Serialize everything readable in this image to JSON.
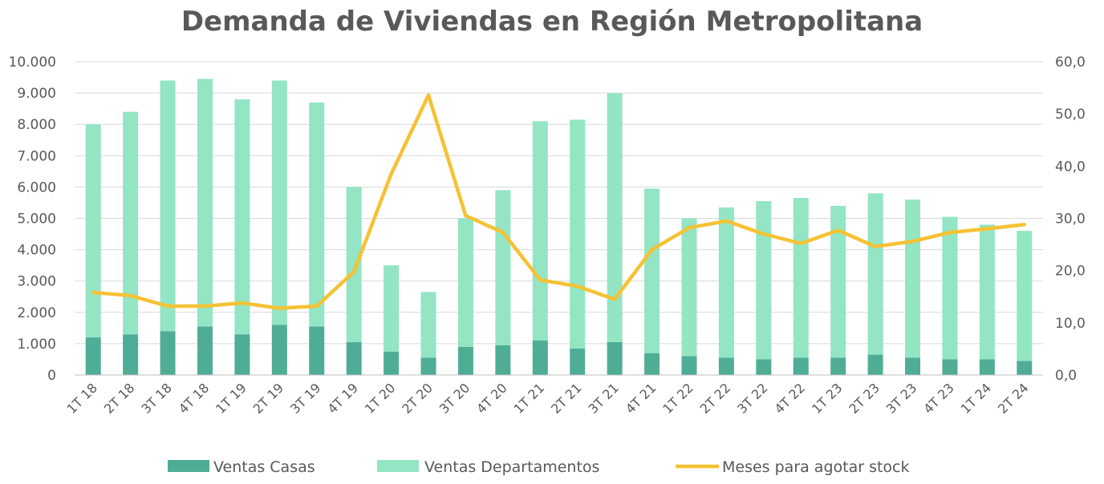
{
  "chart_data": {
    "type": "bar",
    "title": "Demanda de Viviendas en Región Metropolitana",
    "categories": [
      "1T 18",
      "2T 18",
      "3T 18",
      "4T 18",
      "1T 19",
      "2T 19",
      "3T 19",
      "4T 19",
      "1T 20",
      "2T 20",
      "3T 20",
      "4T 20",
      "1T 21",
      "2T 21",
      "3T 21",
      "4T 21",
      "1T 22",
      "2T 22",
      "3T 22",
      "4T 22",
      "1T 23",
      "2T 23",
      "3T 23",
      "4T 23",
      "1T 24",
      "2T 24"
    ],
    "stacked": true,
    "series": [
      {
        "name": "Ventas Casas",
        "type": "bar",
        "axis": "left",
        "values": [
          1200,
          1300,
          1400,
          1550,
          1300,
          1600,
          1550,
          1050,
          750,
          550,
          900,
          950,
          1100,
          850,
          1050,
          700,
          600,
          550,
          500,
          550,
          550,
          650,
          550,
          500,
          500,
          450
        ]
      },
      {
        "name": "Ventas Departamentos",
        "type": "bar",
        "axis": "left",
        "values": [
          6800,
          7100,
          8000,
          7900,
          7500,
          7800,
          7150,
          4950,
          2750,
          2100,
          4100,
          4950,
          7000,
          7300,
          7950,
          5250,
          4400,
          4800,
          5050,
          5100,
          4850,
          5150,
          5050,
          4550,
          4300,
          4150
        ]
      },
      {
        "name": "Meses para agotar stock",
        "type": "line",
        "axis": "right",
        "values": [
          15.8,
          15.2,
          13.2,
          13.2,
          13.8,
          12.8,
          13.2,
          19.8,
          38.5,
          53.6,
          30.5,
          27.3,
          18.2,
          17.0,
          14.5,
          24.0,
          28.2,
          29.5,
          27.0,
          25.2,
          27.7,
          24.6,
          25.6,
          27.3,
          28.0,
          28.8
        ]
      }
    ],
    "yaxis_left": {
      "ylim": [
        0,
        10000
      ],
      "ticks": [
        "0",
        "1.000",
        "2.000",
        "3.000",
        "4.000",
        "5.000",
        "6.000",
        "7.000",
        "8.000",
        "9.000",
        "10.000"
      ]
    },
    "yaxis_right": {
      "ylim": [
        0,
        60
      ],
      "ticks": [
        "0,0",
        "10,0",
        "20,0",
        "30,0",
        "40,0",
        "50,0",
        "60,0"
      ]
    },
    "grid": true,
    "legend_position": "bottom",
    "colors": {
      "Ventas Casas": "#4fad96",
      "Ventas Departamentos": "#93e5c3",
      "Meses para agotar stock": "#f5c234"
    }
  }
}
